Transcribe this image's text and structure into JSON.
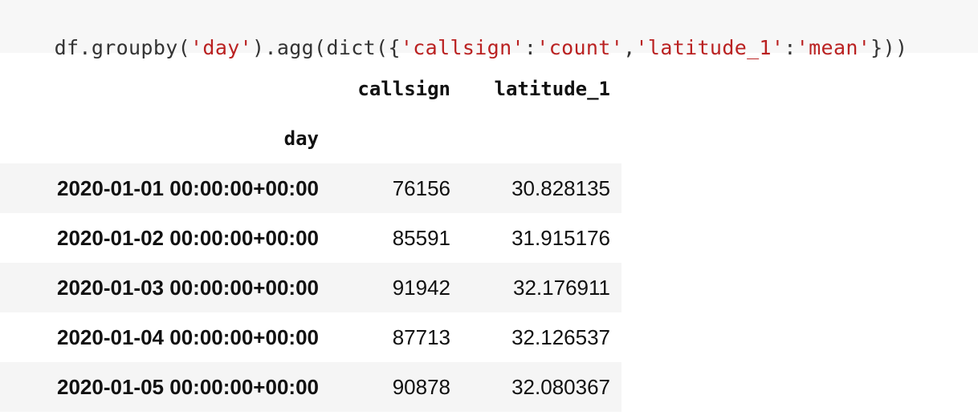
{
  "code_cell": {
    "tokens": [
      {
        "text": "df.groupby(",
        "kind": "plain"
      },
      {
        "text": "'day'",
        "kind": "str"
      },
      {
        "text": ").agg(dict({",
        "kind": "plain"
      },
      {
        "text": "'callsign'",
        "kind": "str"
      },
      {
        "text": ":",
        "kind": "plain"
      },
      {
        "text": "'count'",
        "kind": "str"
      },
      {
        "text": ",",
        "kind": "plain"
      },
      {
        "text": "'latitude_1'",
        "kind": "str"
      },
      {
        "text": ":",
        "kind": "plain"
      },
      {
        "text": "'mean'",
        "kind": "str"
      },
      {
        "text": "}))",
        "kind": "plain"
      }
    ]
  },
  "dataframe": {
    "columns": [
      "callsign",
      "latitude_1"
    ],
    "index_name": "day",
    "rows": [
      {
        "index": "2020-01-01 00:00:00+00:00",
        "callsign": "76156",
        "latitude_1": "30.828135"
      },
      {
        "index": "2020-01-02 00:00:00+00:00",
        "callsign": "85591",
        "latitude_1": "31.915176"
      },
      {
        "index": "2020-01-03 00:00:00+00:00",
        "callsign": "91942",
        "latitude_1": "32.176911"
      },
      {
        "index": "2020-01-04 00:00:00+00:00",
        "callsign": "87713",
        "latitude_1": "32.126537"
      },
      {
        "index": "2020-01-05 00:00:00+00:00",
        "callsign": "90878",
        "latitude_1": "32.080367"
      }
    ]
  },
  "colors": {
    "code_background": "#f7f7f7",
    "string_literal": "#ba2121",
    "stripe": "#f5f5f5"
  }
}
